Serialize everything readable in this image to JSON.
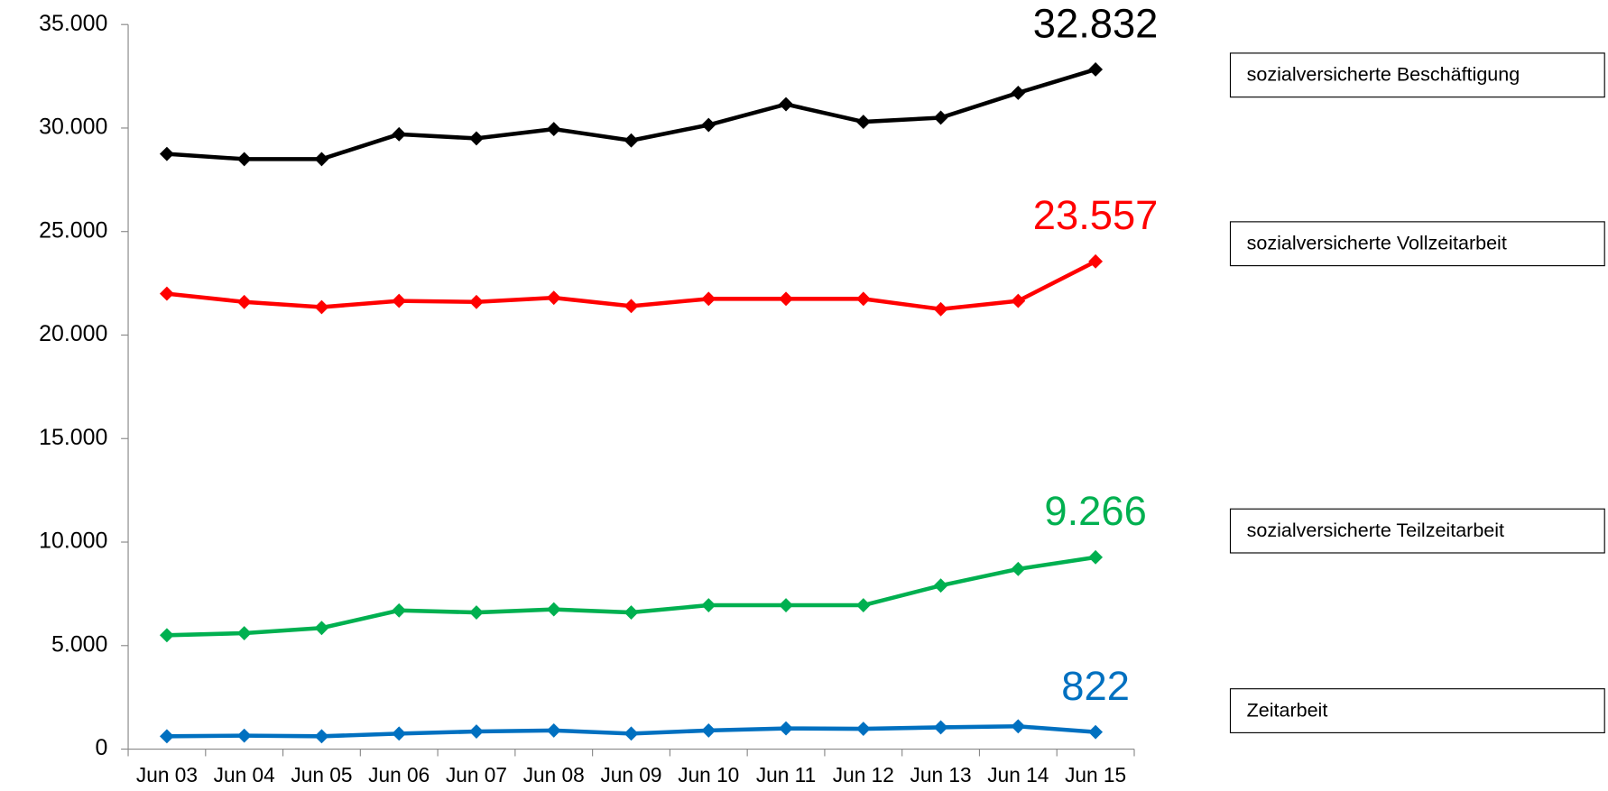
{
  "chart_data": {
    "type": "line",
    "categories": [
      "Jun 03",
      "Jun 04",
      "Jun 05",
      "Jun 06",
      "Jun 07",
      "Jun 08",
      "Jun 09",
      "Jun 10",
      "Jun 11",
      "Jun 12",
      "Jun 13",
      "Jun 14",
      "Jun 15"
    ],
    "series": [
      {
        "name": "sozialversicherte Beschäftigung",
        "color": "#000000",
        "values": [
          28750,
          28500,
          28500,
          29700,
          29500,
          29950,
          29400,
          30150,
          31150,
          30300,
          30500,
          31700,
          32832
        ],
        "value_labels": [
          null,
          null,
          null,
          null,
          null,
          null,
          null,
          null,
          null,
          null,
          null,
          null,
          "32.832"
        ]
      },
      {
        "name": "sozialversicherte Vollzeitarbeit",
        "color": "#ff0000",
        "values": [
          22000,
          21600,
          21350,
          21650,
          21600,
          21800,
          21400,
          21750,
          21750,
          21750,
          21250,
          21650,
          23557
        ],
        "value_labels": [
          null,
          null,
          null,
          null,
          null,
          null,
          null,
          null,
          null,
          null,
          null,
          null,
          "23.557"
        ]
      },
      {
        "name": "sozialversicherte Teilzeitarbeit",
        "color": "#00b050",
        "values": [
          5500,
          5600,
          5850,
          6700,
          6600,
          6750,
          6600,
          6950,
          6950,
          6950,
          7900,
          8700,
          9266
        ],
        "value_labels": [
          null,
          null,
          null,
          null,
          null,
          null,
          null,
          null,
          null,
          null,
          null,
          null,
          "9.266"
        ]
      },
      {
        "name": "Zeitarbeit",
        "color": "#0070c0",
        "values": [
          620,
          650,
          620,
          750,
          850,
          900,
          750,
          900,
          1000,
          980,
          1050,
          1100,
          822
        ],
        "value_labels": [
          null,
          null,
          null,
          null,
          null,
          null,
          null,
          null,
          null,
          null,
          null,
          null,
          "822"
        ]
      }
    ],
    "ylim": [
      0,
      35000
    ],
    "yticks": [
      0,
      {
        "value": 5000,
        "label": "5.000"
      },
      {
        "value": 10000,
        "label": "10.000"
      },
      {
        "value": 15000,
        "label": "15.000"
      },
      {
        "value": 20000,
        "label": "20.000"
      },
      {
        "value": 25000,
        "label": "25.000"
      },
      {
        "value": 30000,
        "label": "30.000"
      },
      {
        "value": 35000,
        "label": "35.000"
      }
    ],
    "grid": false
  }
}
